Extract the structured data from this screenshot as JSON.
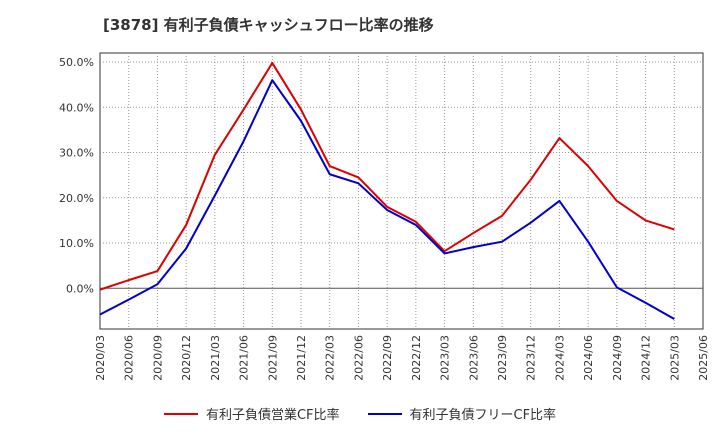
{
  "chart_data": {
    "type": "line",
    "title": "[3878]  有利子負債キャッシュフロー比率の推移",
    "x": [
      "2020/03",
      "2020/06",
      "2020/09",
      "2020/12",
      "2021/03",
      "2021/06",
      "2021/09",
      "2021/12",
      "2022/03",
      "2022/06",
      "2022/09",
      "2022/12",
      "2023/03",
      "2023/06",
      "2023/09",
      "2023/12",
      "2024/03",
      "2024/06",
      "2024/09",
      "2024/12",
      "2025/03",
      "2025/06"
    ],
    "ylim": [
      -9,
      52
    ],
    "y_ticks": [
      "50.0%",
      "40.0%",
      "30.0%",
      "20.0%",
      "10.0%",
      "0.0%"
    ],
    "y_tick_values": [
      50,
      40,
      30,
      20,
      10,
      0
    ],
    "grid": true,
    "legend_position": "bottom",
    "series": [
      {
        "name": "有利子負債営業CF比率",
        "color": "#dd0000",
        "values": [
          -0.3,
          1.8,
          3.8,
          14,
          29.5,
          39.5,
          49.8,
          39.5,
          27,
          24.5,
          18,
          14.7,
          8.2,
          12.2,
          16,
          24,
          33.2,
          27,
          19.3,
          15,
          13,
          null
        ]
      },
      {
        "name": "有利子負債フリーCF比率",
        "color": "#0000cc",
        "values": [
          -5.8,
          -2.5,
          0.9,
          8.8,
          20.5,
          32.5,
          46,
          37,
          25.2,
          23.2,
          17.3,
          14,
          7.7,
          9.1,
          10.3,
          14.5,
          19.3,
          10.3,
          0.2,
          -3.2,
          -6.8,
          null
        ]
      }
    ]
  }
}
